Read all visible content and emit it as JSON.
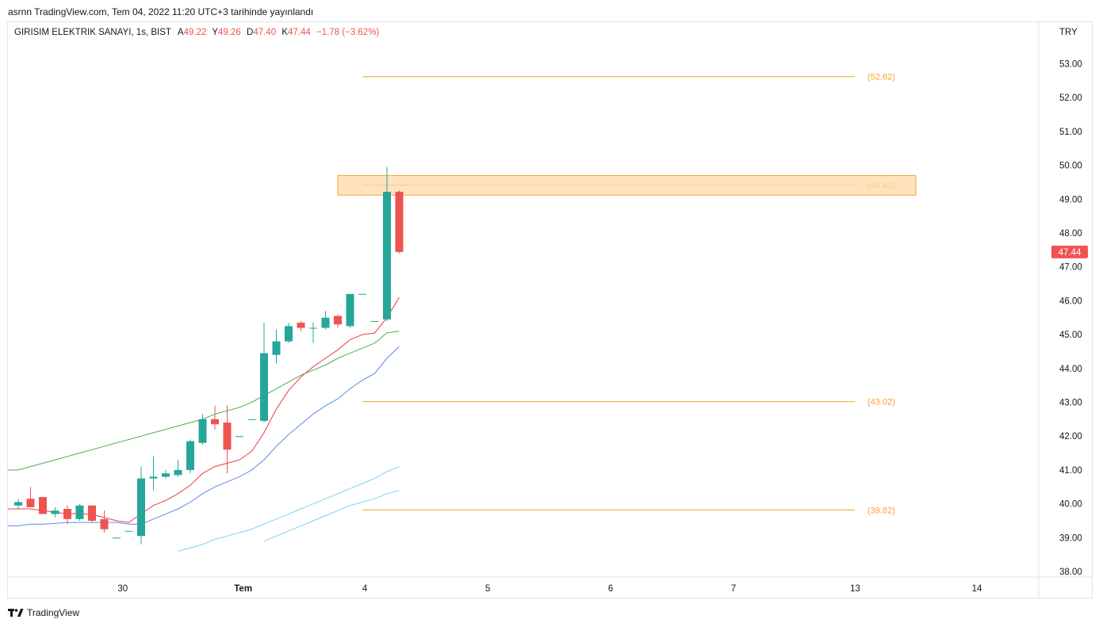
{
  "header": {
    "published": "asrnn TradingView.com, Tem 04, 2022 11:20 UTC+3 tarihinde yayınlandı"
  },
  "legend": {
    "symbol": "GIRISIM ELEKTRIK SANAYI, 1s, BIST",
    "a_label": "A",
    "a_value": "49.22",
    "y_label": "Y",
    "y_value": "49.26",
    "d_label": "D",
    "d_value": "47.40",
    "k_label": "K",
    "k_value": "47.44",
    "change": "−1.78 (−3.62%)"
  },
  "footer": {
    "brand": "TradingView",
    "logo_icon": "tradingview-logo-icon"
  },
  "colors": {
    "up": "#26a69a",
    "down": "#ef5350",
    "level": "#f7a030",
    "zone_fill": "#ffd9a8"
  },
  "chart_data": {
    "type": "candlestick",
    "currency": "TRY",
    "ylim": [
      37.9,
      53.8
    ],
    "y_ticks": [
      "53.00",
      "52.00",
      "51.00",
      "50.00",
      "49.00",
      "48.00",
      "47.00",
      "46.00",
      "45.00",
      "44.00",
      "43.00",
      "42.00",
      "41.00",
      "40.00",
      "39.00",
      "38.00"
    ],
    "x_ticks": [
      {
        "label": "30",
        "bold": false,
        "index": 8.5
      },
      {
        "label": "Tem",
        "bold": true,
        "index": 18.3
      },
      {
        "label": "4",
        "bold": false,
        "index": 28.2
      },
      {
        "label": "5",
        "bold": false,
        "index": 38.2
      },
      {
        "label": "6",
        "bold": false,
        "index": 48.2
      },
      {
        "label": "7",
        "bold": false,
        "index": 58.2
      },
      {
        "label": "13",
        "bold": false,
        "index": 68.1
      },
      {
        "label": "14",
        "bold": false,
        "index": 78.0
      }
    ],
    "candles": [
      [
        39.95,
        40.15,
        39.85,
        40.05
      ],
      [
        40.15,
        40.5,
        39.9,
        39.9
      ],
      [
        40.2,
        40.2,
        39.7,
        39.7
      ],
      [
        39.7,
        39.9,
        39.6,
        39.8
      ],
      [
        39.85,
        39.95,
        39.4,
        39.55
      ],
      [
        39.55,
        40.0,
        39.5,
        39.95
      ],
      [
        39.95,
        39.95,
        39.45,
        39.5
      ],
      [
        39.55,
        39.8,
        39.15,
        39.25
      ],
      [
        39.0,
        39.0,
        39.0,
        39.0
      ],
      [
        39.2,
        39.2,
        39.2,
        39.2
      ],
      [
        39.05,
        41.1,
        38.8,
        40.75
      ],
      [
        40.75,
        41.4,
        40.4,
        40.8
      ],
      [
        40.8,
        41.0,
        40.75,
        40.9
      ],
      [
        40.85,
        41.3,
        40.8,
        41.0
      ],
      [
        41.0,
        41.9,
        40.9,
        41.85
      ],
      [
        41.8,
        42.65,
        41.75,
        42.5
      ],
      [
        42.5,
        42.9,
        42.2,
        42.35
      ],
      [
        42.4,
        42.9,
        40.9,
        41.6
      ],
      [
        42.0,
        42.0,
        42.0,
        42.0
      ],
      [
        42.5,
        42.5,
        42.5,
        42.5
      ],
      [
        42.45,
        45.35,
        42.4,
        44.45
      ],
      [
        44.4,
        45.15,
        44.15,
        44.8
      ],
      [
        44.8,
        45.35,
        44.75,
        45.25
      ],
      [
        45.35,
        45.4,
        45.1,
        45.2
      ],
      [
        45.2,
        45.35,
        44.75,
        45.2
      ],
      [
        45.2,
        45.7,
        45.15,
        45.5
      ],
      [
        45.55,
        45.6,
        45.2,
        45.3
      ],
      [
        45.25,
        46.2,
        45.2,
        46.2
      ],
      [
        46.2,
        46.2,
        46.2,
        46.2
      ],
      [
        45.4,
        45.4,
        45.4,
        45.4
      ],
      [
        45.45,
        49.95,
        45.4,
        49.22
      ],
      [
        49.22,
        49.26,
        47.4,
        47.44
      ]
    ],
    "moving_averages": [
      {
        "color": "#f23645",
        "values": [
          39.85,
          39.85,
          39.8,
          39.75,
          39.7,
          39.72,
          39.68,
          39.6,
          39.5,
          39.45,
          39.7,
          39.95,
          40.1,
          40.3,
          40.55,
          40.9,
          41.1,
          41.2,
          41.3,
          41.55,
          42.1,
          42.8,
          43.35,
          43.75,
          44.05,
          44.3,
          44.55,
          44.85,
          45.0,
          45.05,
          45.5,
          46.1
        ]
      },
      {
        "color": "#4caf50",
        "values": [
          41.0,
          41.1,
          41.2,
          41.3,
          41.4,
          41.5,
          41.6,
          41.7,
          41.8,
          41.9,
          42.0,
          42.1,
          42.2,
          42.3,
          42.4,
          42.5,
          42.65,
          42.75,
          42.85,
          43.0,
          43.2,
          43.4,
          43.6,
          43.8,
          43.95,
          44.1,
          44.3,
          44.45,
          44.6,
          44.75,
          45.05,
          45.1
        ]
      },
      {
        "color": "#5b8ee5",
        "values": [
          39.35,
          39.4,
          39.4,
          39.42,
          39.45,
          39.45,
          39.45,
          39.45,
          39.45,
          39.4,
          39.4,
          39.55,
          39.7,
          39.85,
          40.05,
          40.3,
          40.5,
          40.65,
          40.8,
          41.0,
          41.3,
          41.7,
          42.05,
          42.35,
          42.65,
          42.9,
          43.1,
          43.4,
          43.65,
          43.85,
          44.3,
          44.65
        ]
      },
      {
        "color": "#7dd3ee",
        "values": [
          null,
          null,
          null,
          null,
          null,
          null,
          null,
          null,
          null,
          null,
          null,
          null,
          null,
          38.6,
          38.7,
          38.8,
          38.95,
          39.05,
          39.15,
          39.25,
          39.4,
          39.55,
          39.7,
          39.85,
          40.0,
          40.15,
          40.3,
          40.45,
          40.6,
          40.75,
          40.95,
          41.1
        ]
      },
      {
        "color": "#7dd3ee",
        "values": [
          null,
          null,
          null,
          null,
          null,
          null,
          null,
          null,
          null,
          null,
          null,
          null,
          null,
          null,
          null,
          null,
          null,
          null,
          null,
          null,
          38.9,
          39.05,
          39.2,
          39.35,
          39.5,
          39.65,
          39.8,
          39.95,
          40.05,
          40.15,
          40.3,
          40.4
        ]
      }
    ],
    "levels": [
      {
        "value": 52.62,
        "label": "(52.62)"
      },
      {
        "value": 49.42,
        "label": "(49.42)"
      },
      {
        "value": 43.02,
        "label": "(43.02)"
      },
      {
        "value": 39.82,
        "label": "(39.82)"
      }
    ],
    "zone": {
      "from": 49.12,
      "to": 49.7
    },
    "last_price": {
      "value": 47.44,
      "label": "47.44"
    }
  }
}
